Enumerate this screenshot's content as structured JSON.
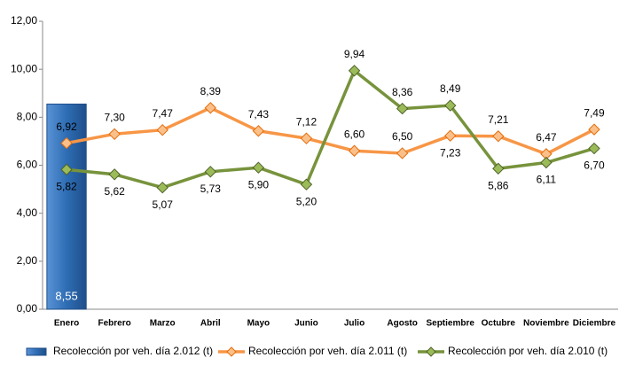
{
  "chart_data": {
    "type": "bar-line",
    "categories": [
      "Enero",
      "Febrero",
      "Marzo",
      "Abril",
      "Mayo",
      "Junio",
      "Julio",
      "Agosto",
      "Septiembre",
      "Octubre",
      "Noviembre",
      "Diciembre"
    ],
    "series": [
      {
        "name": "Recolección por veh. día 2.012 (t)",
        "type": "bar",
        "color": "#2e6db4",
        "values": [
          8.55,
          null,
          null,
          null,
          null,
          null,
          null,
          null,
          null,
          null,
          null,
          null
        ],
        "value_labels": [
          "8,55",
          null,
          null,
          null,
          null,
          null,
          null,
          null,
          null,
          null,
          null,
          null
        ]
      },
      {
        "name": "Recolección por veh. día 2.011 (t)",
        "type": "line",
        "color": "#f79646",
        "values": [
          6.92,
          7.3,
          7.47,
          8.39,
          7.43,
          7.12,
          6.6,
          6.5,
          7.23,
          7.21,
          6.47,
          7.49
        ],
        "value_labels": [
          "6,92",
          "7,30",
          "7,47",
          "8,39",
          "7,43",
          "7,12",
          "6,60",
          "6,50",
          "7,23",
          "7,21",
          "6,47",
          "7,49"
        ]
      },
      {
        "name": "Recolección por veh. día 2.010 (t)",
        "type": "line",
        "color": "#77933c",
        "values": [
          5.82,
          5.62,
          5.07,
          5.73,
          5.9,
          5.2,
          9.94,
          8.36,
          8.49,
          5.86,
          6.11,
          6.7
        ],
        "value_labels": [
          "5,82",
          "5,62",
          "5,07",
          "5,73",
          "5,90",
          "5,20",
          "9,94",
          "8,36",
          "8,49",
          "5,86",
          "6,11",
          "6,70"
        ]
      }
    ],
    "ylim": [
      0,
      12
    ],
    "yticks": [
      {
        "value": 0,
        "label": "0,00"
      },
      {
        "value": 2,
        "label": "2,00"
      },
      {
        "value": 4,
        "label": "4,00"
      },
      {
        "value": 6,
        "label": "6,00"
      },
      {
        "value": 8,
        "label": "8,00"
      },
      {
        "value": 10,
        "label": "10,00"
      },
      {
        "value": 12,
        "label": "12,00"
      }
    ],
    "grid": false,
    "legend": "bottom"
  }
}
